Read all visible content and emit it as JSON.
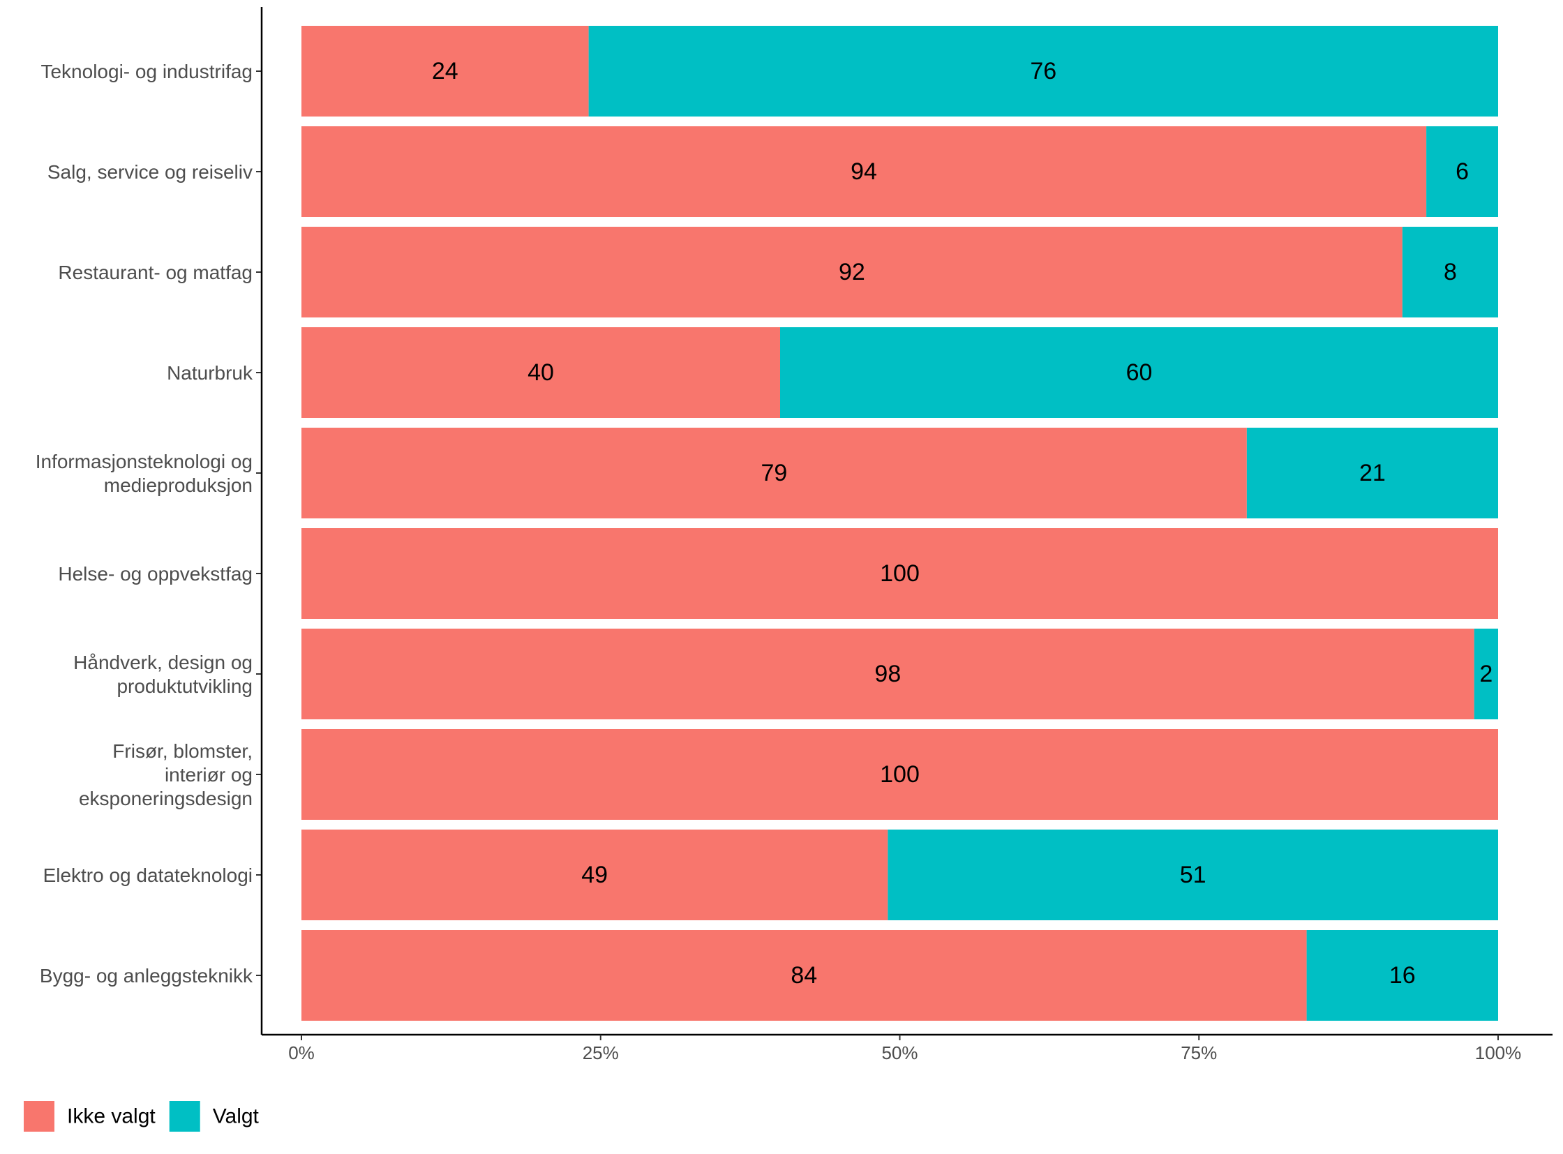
{
  "chart_data": {
    "type": "bar",
    "orientation": "horizontal",
    "stacked": "percent",
    "categories": [
      [
        "Teknologi- og industrifag"
      ],
      [
        "Salg, service og reiseliv"
      ],
      [
        "Restaurant- og matfag"
      ],
      [
        "Naturbruk"
      ],
      [
        "Informasjonsteknologi og",
        "medieproduksjon"
      ],
      [
        "Helse- og oppvekstfag"
      ],
      [
        "Håndverk, design og",
        "produktutvikling"
      ],
      [
        "Frisør, blomster,",
        "interiør og",
        "eksponeringsdesign"
      ],
      [
        "Elektro og datateknologi"
      ],
      [
        "Bygg- og anleggsteknikk"
      ]
    ],
    "series": [
      {
        "name": "Ikke valgt",
        "color": "#F8766D",
        "values": [
          24,
          94,
          92,
          40,
          79,
          100,
          98,
          100,
          49,
          84
        ]
      },
      {
        "name": "Valgt",
        "color": "#00BFC4",
        "values": [
          76,
          6,
          8,
          60,
          21,
          0,
          2,
          0,
          51,
          16
        ]
      }
    ],
    "x_ticks": [
      "0%",
      "25%",
      "50%",
      "75%",
      "100%"
    ],
    "xlim": [
      0,
      100
    ],
    "xlabel": "",
    "ylabel": "",
    "title": "",
    "grid": false,
    "legend_position": "bottom-left"
  }
}
